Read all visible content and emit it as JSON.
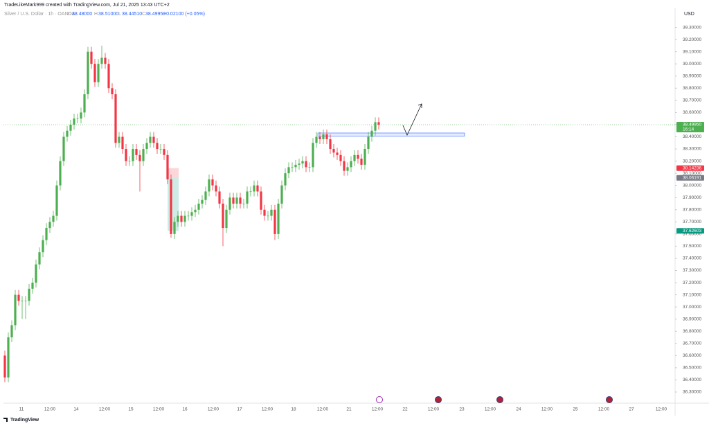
{
  "header": {
    "attribution": "TradeLikeMark999 created with TradingView.com, Jul 21, 2025 13:43 UTC+2",
    "symbol": "Silver / U.S. Dollar · 1h · OANDA",
    "o_key": "O",
    "open": "38.48000",
    "h_key": "H",
    "high": "38.51000",
    "l_key": "L",
    "low": "38.44510",
    "c_key": "C",
    "close": "38.49950",
    "change": "+0.02100 (+0.05%)"
  },
  "footer": {
    "brand": "TradingView"
  },
  "chart_data": {
    "type": "candlestick",
    "currency": "USD",
    "up_color": "#4caf50",
    "down_color": "#f23645",
    "ylim": [
      36.22,
      39.44
    ],
    "yticks": [
      {
        "value": 36.3,
        "label": "36.30000"
      },
      {
        "value": 36.4,
        "label": "36.40000"
      },
      {
        "value": 36.5,
        "label": "36.50000"
      },
      {
        "value": 36.6,
        "label": "36.60000"
      },
      {
        "value": 36.7,
        "label": "36.70000"
      },
      {
        "value": 36.8,
        "label": "36.80000"
      },
      {
        "value": 36.9,
        "label": "36.90000"
      },
      {
        "value": 37.0,
        "label": "37.00000"
      },
      {
        "value": 37.1,
        "label": "37.10000"
      },
      {
        "value": 37.2,
        "label": "37.20000"
      },
      {
        "value": 37.3,
        "label": "37.30000"
      },
      {
        "value": 37.4,
        "label": "37.40000"
      },
      {
        "value": 37.5,
        "label": "37.50000"
      },
      {
        "value": 37.6,
        "label": "37.60000"
      },
      {
        "value": 37.7,
        "label": "37.70000"
      },
      {
        "value": 37.8,
        "label": "37.80000"
      },
      {
        "value": 37.9,
        "label": "37.90000"
      },
      {
        "value": 38.0,
        "label": "38.00000"
      },
      {
        "value": 38.1,
        "label": "38.10000"
      },
      {
        "value": 38.2,
        "label": "38.20000"
      },
      {
        "value": 38.3,
        "label": "38.30000"
      },
      {
        "value": 38.4,
        "label": "38.40000"
      },
      {
        "value": 38.5,
        "label": "38.50000"
      },
      {
        "value": 38.6,
        "label": "38.60000"
      },
      {
        "value": 38.7,
        "label": "38.70000"
      },
      {
        "value": 38.8,
        "label": "38.80000"
      },
      {
        "value": 38.9,
        "label": "38.90000"
      },
      {
        "value": 39.0,
        "label": "39.00000"
      },
      {
        "value": 39.1,
        "label": "39.10000"
      },
      {
        "value": 39.2,
        "label": "39.20000"
      },
      {
        "value": 39.3,
        "label": "39.30000"
      }
    ],
    "x_labels": [
      "11",
      "12:00",
      "14",
      "12:00",
      "15",
      "12:00",
      "16",
      "12:00",
      "17",
      "12:00",
      "18",
      "12:00",
      "21",
      "12:00",
      "22",
      "12:00",
      "23",
      "12:00",
      "24",
      "12:00",
      "25",
      "12:00",
      "27",
      "12:00"
    ],
    "price_labels": [
      {
        "value": 38.4995,
        "label": "38.49950",
        "countdown": "16:14",
        "color": "#4caf50"
      },
      {
        "value": 38.14236,
        "label": "38.14236",
        "color": "#f23645"
      },
      {
        "value": 38.06191,
        "label": "38.06191",
        "color": "#787b86"
      },
      {
        "value": 37.62603,
        "label": "37.62603",
        "color": "#089981"
      }
    ],
    "open": [
      36.6,
      36.42,
      36.75,
      36.85,
      37.1,
      37.05,
      37.05,
      37.05,
      37.15,
      37.2,
      37.35,
      37.45,
      37.55,
      37.65,
      37.7,
      37.75,
      38.0,
      38.2,
      38.4,
      38.45,
      38.5,
      38.55,
      38.55,
      38.6,
      38.75,
      39.1,
      39.0,
      38.85,
      39.0,
      39.05,
      39.0,
      38.8,
      38.75,
      38.35,
      38.4,
      38.3,
      38.2,
      38.2,
      38.3,
      38.25,
      38.2,
      38.3,
      38.35,
      38.4,
      38.35,
      38.3,
      38.3,
      38.25,
      38.05,
      37.6,
      37.7,
      37.75,
      37.7,
      37.75,
      37.75,
      37.78,
      37.8,
      37.85,
      37.88,
      37.95,
      38.05,
      38.0,
      37.95,
      37.85,
      37.65,
      37.8,
      37.9,
      37.85,
      37.9,
      37.85,
      37.85,
      37.95,
      37.95,
      38.0,
      37.95,
      37.8,
      37.75,
      37.75,
      37.8,
      37.6,
      37.85,
      38.0,
      38.1,
      38.15,
      38.15,
      38.17,
      38.18,
      38.2,
      38.15,
      38.15,
      38.35,
      38.4,
      38.38,
      38.42,
      38.38,
      38.3,
      38.27,
      38.25,
      38.2,
      38.12,
      38.15,
      38.2,
      38.25,
      38.22,
      38.17,
      38.3,
      38.4,
      38.45,
      38.52
    ],
    "high": [
      36.64,
      36.79,
      36.89,
      37.14,
      37.14,
      37.09,
      37.09,
      37.19,
      37.24,
      37.39,
      37.49,
      37.59,
      37.69,
      37.74,
      37.79,
      38.04,
      38.24,
      38.44,
      38.49,
      38.54,
      38.59,
      38.59,
      38.64,
      38.79,
      39.14,
      39.14,
      39.04,
      39.04,
      39.15,
      39.09,
      39.04,
      38.84,
      38.79,
      38.44,
      38.44,
      38.34,
      38.24,
      38.34,
      38.34,
      38.29,
      38.34,
      38.39,
      38.44,
      38.44,
      38.39,
      38.34,
      38.34,
      38.29,
      38.09,
      37.74,
      37.79,
      37.79,
      37.79,
      37.79,
      37.82,
      37.84,
      37.89,
      37.92,
      37.99,
      38.09,
      38.09,
      38.04,
      37.99,
      37.89,
      37.84,
      37.94,
      37.94,
      37.94,
      37.94,
      37.89,
      37.99,
      37.99,
      38.04,
      38.04,
      37.99,
      37.84,
      37.79,
      37.84,
      37.84,
      37.89,
      38.04,
      38.14,
      38.19,
      38.19,
      38.21,
      38.22,
      38.24,
      38.24,
      38.19,
      38.39,
      38.44,
      38.44,
      38.46,
      38.46,
      38.42,
      38.34,
      38.31,
      38.29,
      38.24,
      38.19,
      38.24,
      38.29,
      38.29,
      38.26,
      38.34,
      38.44,
      38.49,
      38.56,
      38.56
    ],
    "low": [
      36.38,
      36.38,
      36.71,
      36.81,
      37.01,
      36.9,
      36.9,
      37.01,
      37.11,
      37.16,
      37.31,
      37.41,
      37.51,
      37.61,
      37.66,
      37.71,
      37.96,
      38.16,
      38.36,
      38.41,
      38.46,
      38.51,
      38.51,
      38.56,
      38.71,
      38.96,
      38.81,
      38.81,
      38.96,
      38.96,
      38.76,
      38.71,
      38.31,
      38.31,
      38.26,
      38.16,
      38.16,
      38.16,
      38.21,
      37.95,
      38.16,
      38.26,
      38.31,
      38.31,
      38.26,
      38.26,
      38.21,
      38.01,
      37.57,
      37.56,
      37.66,
      37.66,
      37.66,
      37.71,
      37.71,
      37.74,
      37.76,
      37.81,
      37.84,
      37.91,
      37.96,
      37.91,
      37.81,
      37.5,
      37.61,
      37.76,
      37.81,
      37.81,
      37.81,
      37.81,
      37.81,
      37.91,
      37.91,
      37.91,
      37.76,
      37.71,
      37.71,
      37.71,
      37.55,
      37.56,
      37.81,
      37.96,
      38.06,
      38.11,
      38.11,
      38.13,
      38.14,
      38.11,
      38.11,
      38.11,
      38.31,
      38.34,
      38.34,
      38.34,
      38.26,
      38.23,
      38.21,
      38.16,
      38.08,
      38.08,
      38.11,
      38.16,
      38.18,
      38.13,
      38.13,
      38.26,
      38.36,
      38.41,
      38.46
    ],
    "close": [
      36.42,
      36.75,
      36.85,
      37.1,
      37.05,
      37.05,
      37.05,
      37.15,
      37.2,
      37.35,
      37.45,
      37.55,
      37.65,
      37.7,
      37.75,
      38.0,
      38.2,
      38.4,
      38.45,
      38.5,
      38.55,
      38.55,
      38.6,
      38.75,
      39.1,
      39.0,
      38.85,
      39.0,
      39.05,
      39.0,
      38.8,
      38.75,
      38.35,
      38.4,
      38.3,
      38.2,
      38.2,
      38.3,
      38.25,
      38.2,
      38.3,
      38.35,
      38.4,
      38.35,
      38.3,
      38.3,
      38.25,
      38.05,
      37.6,
      37.7,
      37.75,
      37.7,
      37.75,
      37.75,
      37.78,
      37.8,
      37.85,
      37.88,
      37.95,
      38.05,
      38.0,
      37.95,
      37.85,
      37.65,
      37.8,
      37.9,
      37.85,
      37.9,
      37.85,
      37.85,
      37.95,
      37.95,
      38.0,
      37.95,
      37.8,
      37.75,
      37.75,
      37.8,
      37.6,
      37.85,
      38.0,
      38.1,
      38.15,
      38.15,
      38.17,
      38.18,
      38.2,
      38.15,
      38.15,
      38.35,
      38.4,
      38.38,
      38.42,
      38.38,
      38.3,
      38.27,
      38.25,
      38.2,
      38.12,
      38.15,
      38.2,
      38.25,
      38.22,
      38.17,
      38.3,
      38.4,
      38.45,
      38.52,
      38.5
    ]
  }
}
